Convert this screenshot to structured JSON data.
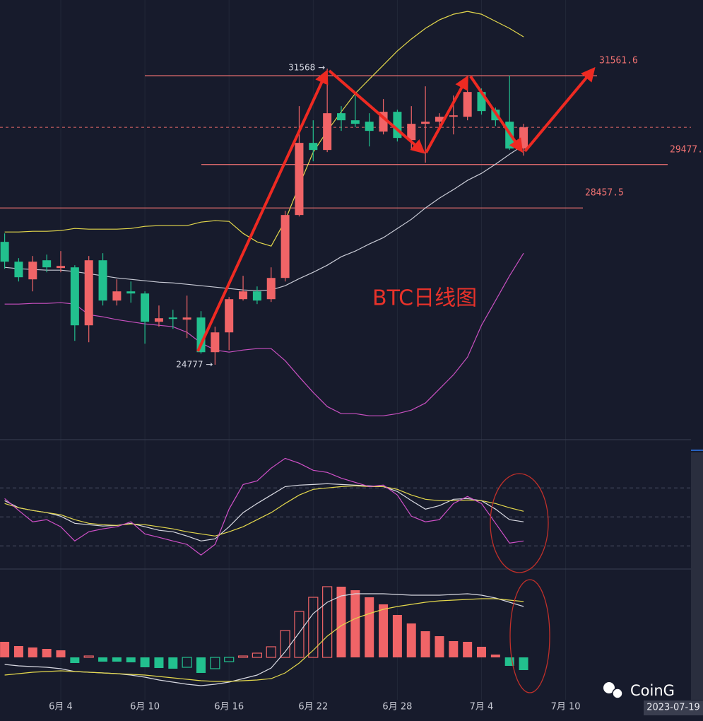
{
  "chart_data": [
    {
      "type": "candlestick",
      "title": "BTC日线图",
      "categories": [
        null,
        null,
        null,
        null,
        "6月 4",
        null,
        null,
        null,
        null,
        null,
        "6月 10",
        null,
        null,
        null,
        null,
        null,
        "6月 16",
        null,
        null,
        null,
        null,
        null,
        "6月 22",
        null,
        null,
        null,
        null,
        null,
        "6月 28",
        null,
        null,
        null,
        null,
        null,
        "7月 4",
        null,
        null,
        null,
        null,
        null,
        "7月 10"
      ],
      "open": [
        27661,
        27196,
        26781,
        27229,
        27047,
        27063,
        25702,
        27229,
        26283,
        26499,
        26449,
        25785,
        25885,
        25835,
        25885,
        25071,
        25536,
        26316,
        26499,
        26316,
        26814,
        28292,
        29985,
        29819,
        30682,
        30516,
        30483,
        30250,
        30715,
        30051,
        30433,
        30483,
        30599,
        30599,
        31180,
        30765,
        30483,
        29852,
        null,
        null,
        null
      ],
      "high": [
        27860,
        27279,
        27329,
        27362,
        27445,
        27113,
        27329,
        27395,
        26781,
        26731,
        26499,
        26167,
        26067,
        26399,
        26034,
        25669,
        26366,
        26864,
        26615,
        27063,
        28391,
        30848,
        30516,
        31728,
        30848,
        31097,
        30682,
        31014,
        30765,
        30848,
        31313,
        30682,
        31097,
        31545,
        31263,
        30815,
        31568,
        30433,
        null,
        null,
        null
      ],
      "low": [
        27030,
        26731,
        26499,
        26947,
        26947,
        25337,
        25304,
        26167,
        26167,
        26233,
        25270,
        25669,
        25619,
        25403,
        25038,
        24777,
        25121,
        26283,
        26200,
        26250,
        26731,
        28258,
        29553,
        29769,
        30267,
        30350,
        29902,
        30184,
        30018,
        29819,
        29520,
        30350,
        30184,
        30516,
        30649,
        30383,
        29819,
        29686,
        null,
        null,
        null
      ],
      "close": [
        27196,
        26831,
        27196,
        27063,
        27096,
        25702,
        27229,
        26283,
        26499,
        26449,
        25785,
        25868,
        25851,
        25885,
        25071,
        25536,
        26316,
        26499,
        26283,
        26814,
        28292,
        29985,
        29819,
        30682,
        30516,
        30433,
        30267,
        30715,
        30101,
        30433,
        30483,
        30599,
        30632,
        31180,
        30732,
        30516,
        29852,
        30350,
        null,
        null,
        null
      ],
      "up_color": "#f06467",
      "down_color": "#22c08e",
      "ylim": [
        23050,
        33340
      ],
      "series": [
        {
          "color": "#e4d84c",
          "values": [
            27893,
            27893,
            27910,
            27910,
            27926,
            27976,
            27960,
            27960,
            27960,
            27976,
            28026,
            28043,
            28043,
            28043,
            28126,
            28159,
            28142,
            27860,
            27661,
            27561,
            28159,
            28989,
            29769,
            30267,
            30715,
            31147,
            31479,
            31811,
            32143,
            32425,
            32674,
            32873,
            33006,
            33072,
            33006,
            32840,
            32674,
            32475,
            null,
            null,
            null
          ]
        },
        {
          "color": "#c9cbd6",
          "values": [
            27063,
            27030,
            27013,
            26997,
            26997,
            26964,
            26914,
            26864,
            26814,
            26781,
            26748,
            26715,
            26698,
            26665,
            26632,
            26598,
            26565,
            26532,
            26515,
            26532,
            26632,
            26798,
            26947,
            27113,
            27312,
            27445,
            27611,
            27760,
            27976,
            28192,
            28457,
            28690,
            28889,
            29105,
            29271,
            29487,
            29719,
            29935,
            null,
            null,
            null
          ]
        },
        {
          "color": "#c850c0",
          "values": [
            26200,
            26200,
            26217,
            26217,
            26233,
            26200,
            25951,
            25901,
            25835,
            25785,
            25735,
            25702,
            25669,
            25536,
            25287,
            25121,
            25071,
            25121,
            25154,
            25154,
            24872,
            24490,
            24125,
            23793,
            23627,
            23627,
            23577,
            23577,
            23627,
            23710,
            23876,
            24208,
            24540,
            24955,
            25702,
            26283,
            26864,
            27395,
            null,
            null,
            null
          ]
        }
      ],
      "price_lines": [
        31561.6,
        {
          "value": 29477,
          "label": "29477."
        },
        28457.5
      ],
      "price_line_color": "#f07272",
      "high_label": "31568 →",
      "low_label": "24777 →"
    },
    {
      "type": "line",
      "ylim": [
        -4,
        130
      ],
      "levels": [
        80,
        50,
        20
      ],
      "series": [
        {
          "color": "#d8d9e2",
          "values": [
            66.8,
            59.5,
            56.6,
            54.4,
            50.7,
            43.4,
            41.9,
            40.5,
            41.2,
            43.4,
            39.8,
            36.1,
            34.6,
            30.2,
            25.1,
            27.3,
            39.8,
            54.4,
            63.9,
            72.7,
            81.4,
            82.9,
            83.6,
            84.4,
            83.6,
            82.9,
            82.2,
            81.4,
            76.3,
            66.8,
            58.0,
            61.7,
            68.3,
            69.0,
            66.8,
            58.0,
            47.1,
            44.9
          ]
        },
        {
          "color": "#e4d84c",
          "values": [
            63.9,
            59.5,
            56.6,
            54.4,
            52.2,
            47.1,
            43.4,
            41.9,
            41.2,
            42.7,
            41.9,
            39.8,
            37.6,
            34.6,
            32.4,
            30.2,
            34.6,
            39.8,
            47.1,
            54.4,
            63.9,
            72.7,
            78.5,
            80.0,
            81.4,
            82.2,
            81.4,
            81.4,
            78.5,
            72.7,
            68.3,
            66.8,
            66.8,
            67.5,
            66.8,
            63.9,
            59.5,
            55.8
          ]
        },
        {
          "color": "#d050c8",
          "values": [
            69.0,
            56.6,
            44.9,
            47.1,
            39.8,
            25.1,
            34.6,
            37.6,
            39.8,
            44.9,
            32.4,
            28.8,
            25.1,
            21.5,
            10.5,
            21.5,
            58.0,
            83.6,
            87.3,
            100.5,
            110.7,
            105.6,
            98.3,
            96.1,
            90.2,
            85.8,
            81.4,
            82.9,
            72.7,
            50.7,
            44.9,
            47.1,
            63.9,
            71.2,
            63.9,
            43.4,
            22.9,
            25.1
          ]
        }
      ]
    },
    {
      "type": "macd",
      "ylim": [
        -560,
        1000
      ],
      "up_color": "#f06467",
      "down_color": "#22c08e",
      "values": [
        176,
        128,
        112,
        96,
        80,
        -64,
        16,
        -48,
        -48,
        -56,
        -112,
        -120,
        -128,
        -112,
        -176,
        -128,
        -48,
        16,
        48,
        120,
        304,
        520,
        680,
        800,
        800,
        760,
        680,
        600,
        480,
        384,
        296,
        240,
        184,
        176,
        120,
        32,
        -96,
        -144
      ],
      "series": [
        {
          "color": "#d8d9e2",
          "values": [
            -80,
            -96,
            -104,
            -112,
            -128,
            -160,
            -168,
            -176,
            -184,
            -200,
            -224,
            -256,
            -280,
            -304,
            -320,
            -304,
            -280,
            -240,
            -200,
            -120,
            64,
            280,
            496,
            624,
            696,
            720,
            720,
            720,
            712,
            704,
            704,
            704,
            712,
            720,
            704,
            672,
            624,
            576
          ]
        },
        {
          "color": "#e4d84c",
          "values": [
            -200,
            -184,
            -168,
            -160,
            -152,
            -160,
            -168,
            -176,
            -184,
            -192,
            -200,
            -216,
            -232,
            -248,
            -264,
            -272,
            -272,
            -264,
            -256,
            -240,
            -176,
            -64,
            80,
            240,
            360,
            440,
            496,
            544,
            576,
            600,
            624,
            640,
            648,
            656,
            664,
            664,
            648,
            632
          ]
        }
      ]
    }
  ],
  "watermark": "CoinG",
  "date_badge": "2023-07-19"
}
